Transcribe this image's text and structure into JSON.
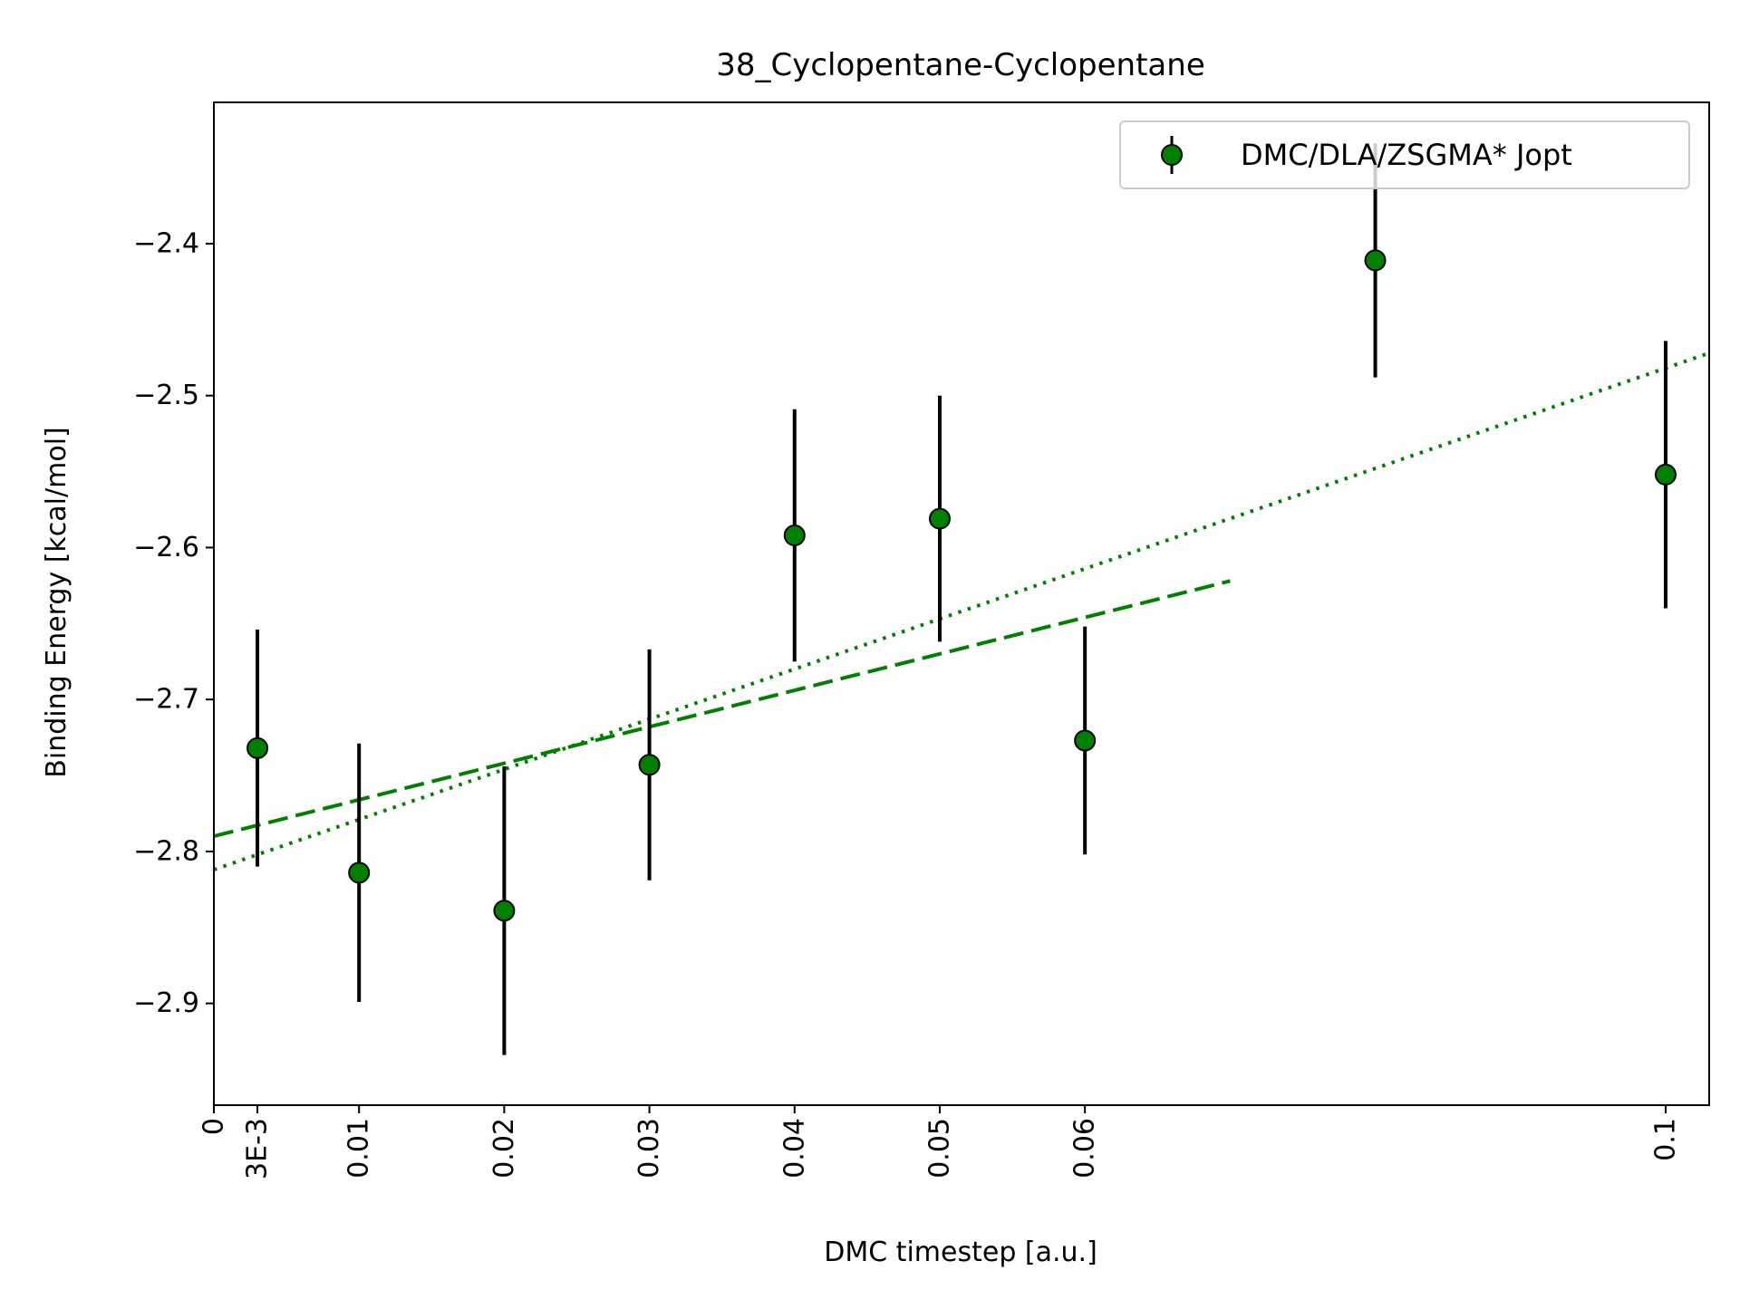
{
  "chart_data": {
    "type": "scatter",
    "title": "38_Cyclopentane-Cyclopentane",
    "xlabel": "DMC timestep [a.u.]",
    "ylabel": "Binding Energy [kcal/mol]",
    "xlim": [
      0,
      0.103
    ],
    "ylim": [
      -2.967,
      -2.307
    ],
    "x_ticks": [
      {
        "value": 0,
        "label": "0"
      },
      {
        "value": 0.003,
        "label": "3E-3"
      },
      {
        "value": 0.01,
        "label": "0.01"
      },
      {
        "value": 0.02,
        "label": "0.02"
      },
      {
        "value": 0.03,
        "label": "0.03"
      },
      {
        "value": 0.04,
        "label": "0.04"
      },
      {
        "value": 0.05,
        "label": "0.05"
      },
      {
        "value": 0.06,
        "label": "0.06"
      },
      {
        "value": 0.1,
        "label": "0.1"
      }
    ],
    "y_ticks": [
      {
        "value": -2.4,
        "label": "−2.4"
      },
      {
        "value": -2.5,
        "label": "−2.5"
      },
      {
        "value": -2.6,
        "label": "−2.6"
      },
      {
        "value": -2.7,
        "label": "−2.7"
      },
      {
        "value": -2.8,
        "label": "−2.8"
      },
      {
        "value": -2.9,
        "label": "−2.9"
      }
    ],
    "grid": false,
    "legend_position": "top-right",
    "series": [
      {
        "name": "DMC/DLA/ZSGMA* Jopt",
        "marker_color": "#008000",
        "errorbar_color": "#000000",
        "points": [
          {
            "x": 0.003,
            "y": -2.732,
            "err": 0.078
          },
          {
            "x": 0.01,
            "y": -2.814,
            "err": 0.085
          },
          {
            "x": 0.02,
            "y": -2.839,
            "err": 0.095
          },
          {
            "x": 0.03,
            "y": -2.743,
            "err": 0.076
          },
          {
            "x": 0.04,
            "y": -2.592,
            "err": 0.083
          },
          {
            "x": 0.05,
            "y": -2.581,
            "err": 0.081
          },
          {
            "x": 0.06,
            "y": -2.727,
            "err": 0.075
          },
          {
            "x": 0.08,
            "y": -2.411,
            "err": 0.077
          },
          {
            "x": 0.1,
            "y": -2.552,
            "err": 0.088
          }
        ]
      }
    ],
    "fit_lines": [
      {
        "style": "dashed",
        "color": "#008000",
        "x": [
          0,
          0.07
        ],
        "y": [
          -2.79,
          -2.622
        ]
      },
      {
        "style": "dotted",
        "color": "#008000",
        "x": [
          0,
          0.103
        ],
        "y": [
          -2.812,
          -2.472
        ]
      }
    ]
  }
}
